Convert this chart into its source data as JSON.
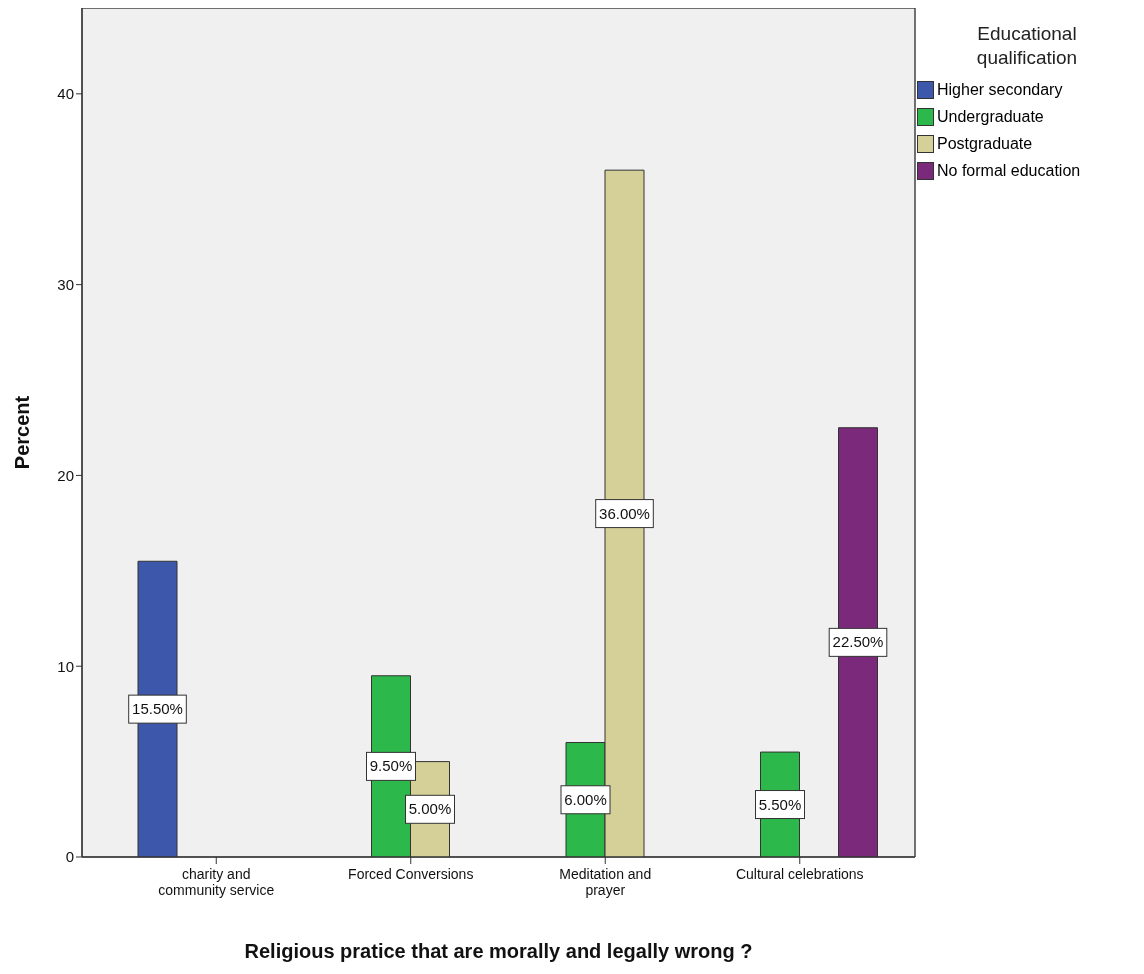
{
  "chart_data": {
    "type": "bar",
    "xlabel": "Religious pratice that are morally and legally wrong ?",
    "ylabel": "Percent",
    "legend_title": "Educational qualification",
    "legend": "top right",
    "categories": [
      "charity and community service",
      "Forced Conversions",
      "Meditation and prayer",
      "Cultural celebrations"
    ],
    "series": [
      {
        "name": "Higher secondary",
        "color": "#3d57ab",
        "values": [
          15.5,
          null,
          null,
          null
        ],
        "value_labels": [
          "15.50%",
          null,
          null,
          null
        ]
      },
      {
        "name": "Undergraduate",
        "color": "#2db84b",
        "values": [
          null,
          9.5,
          6.0,
          5.5
        ],
        "value_labels": [
          null,
          "9.50%",
          "6.00%",
          "5.50%"
        ]
      },
      {
        "name": "Postgraduate",
        "color": "#d5cf98",
        "values": [
          null,
          5.0,
          36.0,
          null
        ],
        "value_labels": [
          null,
          "5.00%",
          "36.00%",
          null
        ]
      },
      {
        "name": "No formal education",
        "color": "#7b2a7b",
        "values": [
          null,
          null,
          null,
          22.5
        ],
        "value_labels": [
          null,
          null,
          null,
          "22.50%"
        ]
      }
    ],
    "ylim": [
      0,
      44.5
    ],
    "yticks": [
      0,
      10,
      20,
      30,
      40
    ]
  }
}
